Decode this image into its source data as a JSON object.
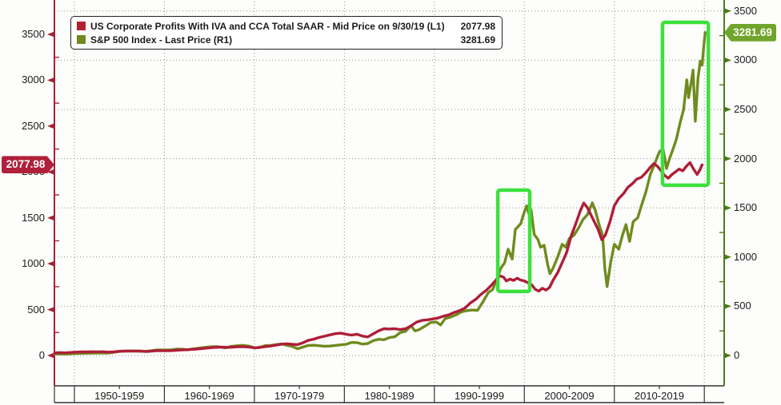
{
  "colors": {
    "profits_line": "#ae1e37",
    "sp500_line": "#6f8b1f",
    "left_axis": "#a82036",
    "right_axis": "#4a7c18",
    "highlight_box": "#3ce13c",
    "grid": "#8f8f8f",
    "band_line": "#333333",
    "left_tag_bg": "#b0203a",
    "right_tag_bg": "#70a42a"
  },
  "legend": {
    "items": [
      {
        "label": "US Corporate Profits With IVA and CCA Total SAAR - Mid Price on 9/30/19 (L1)",
        "value": "2077.98",
        "color": "#b3202f"
      },
      {
        "label": "S&P 500 Index - Last Price (R1)",
        "value": "3281.69",
        "color": "#6f8b1f"
      }
    ]
  },
  "price_tags": {
    "left": {
      "text": "2077.98",
      "value": 2077.98,
      "axis": "L1"
    },
    "right": {
      "text": "3281.69",
      "value": 3281.69,
      "axis": "R1"
    }
  },
  "chart_data": {
    "type": "line",
    "grid": true,
    "left_axis": {
      "name": "L1",
      "range": [
        0,
        3500
      ],
      "tick_step": 500,
      "minor_step": 250,
      "tick_values": [
        0,
        500,
        1000,
        1500,
        2000,
        2500,
        3000,
        3500
      ]
    },
    "right_axis": {
      "name": "R1",
      "range": [
        0,
        3500
      ],
      "tick_step": 500,
      "minor_step": 250,
      "tick_values": [
        0,
        500,
        1000,
        1500,
        2000,
        2500,
        3000,
        3500
      ]
    },
    "x_axis": {
      "boundaries": [
        1950,
        1960,
        1970,
        1980,
        1990,
        2000,
        2010,
        2020
      ],
      "labels": [
        "1950-1959",
        "1960-1969",
        "1970-1979",
        "1980-1989",
        "1990-1999",
        "2000-2009",
        "2010-2019"
      ]
    },
    "series": [
      {
        "name": "S&P 500 Index - Last Price (R1)",
        "axis": "R1",
        "color": "#6f8b1f",
        "last_value": 3281.69,
        "points": [
          [
            1947.8,
            15
          ],
          [
            1948.5,
            16
          ],
          [
            1949.2,
            15
          ],
          [
            1950,
            19
          ],
          [
            1950.7,
            21
          ],
          [
            1951.4,
            23
          ],
          [
            1952.1,
            24
          ],
          [
            1952.8,
            25
          ],
          [
            1953.5,
            24
          ],
          [
            1954.2,
            30
          ],
          [
            1955,
            41
          ],
          [
            1955.7,
            45
          ],
          [
            1956.4,
            47
          ],
          [
            1957.1,
            45
          ],
          [
            1957.8,
            41
          ],
          [
            1958.5,
            48
          ],
          [
            1959.2,
            56
          ],
          [
            1960,
            56
          ],
          [
            1960.7,
            56
          ],
          [
            1961.4,
            66
          ],
          [
            1962.1,
            63
          ],
          [
            1962.5,
            56
          ],
          [
            1963,
            65
          ],
          [
            1963.7,
            73
          ],
          [
            1964.4,
            81
          ],
          [
            1965.1,
            88
          ],
          [
            1965.8,
            91
          ],
          [
            1966.3,
            84
          ],
          [
            1966.8,
            77
          ],
          [
            1967.4,
            92
          ],
          [
            1968,
            98
          ],
          [
            1968.7,
            103
          ],
          [
            1969.4,
            95
          ],
          [
            1970,
            78
          ],
          [
            1970.6,
            83
          ],
          [
            1971.2,
            100
          ],
          [
            1971.8,
            102
          ],
          [
            1972.4,
            110
          ],
          [
            1973,
            118
          ],
          [
            1973.6,
            104
          ],
          [
            1974.2,
            92
          ],
          [
            1974.8,
            68
          ],
          [
            1975.4,
            86
          ],
          [
            1976,
            102
          ],
          [
            1976.6,
            104
          ],
          [
            1977.2,
            99
          ],
          [
            1977.8,
            94
          ],
          [
            1978.4,
            96
          ],
          [
            1979,
            102
          ],
          [
            1979.6,
            108
          ],
          [
            1980.2,
            114
          ],
          [
            1980.8,
            132
          ],
          [
            1981.4,
            131
          ],
          [
            1982,
            115
          ],
          [
            1982.6,
            122
          ],
          [
            1983.2,
            150
          ],
          [
            1983.8,
            165
          ],
          [
            1984.4,
            160
          ],
          [
            1985,
            182
          ],
          [
            1985.6,
            190
          ],
          [
            1986.2,
            232
          ],
          [
            1986.8,
            245
          ],
          [
            1987.4,
            302
          ],
          [
            1987.85,
            250
          ],
          [
            1988.3,
            262
          ],
          [
            1989,
            300
          ],
          [
            1989.6,
            335
          ],
          [
            1990.2,
            340
          ],
          [
            1990.7,
            310
          ],
          [
            1991.2,
            375
          ],
          [
            1991.8,
            390
          ],
          [
            1992.4,
            412
          ],
          [
            1993,
            442
          ],
          [
            1993.6,
            455
          ],
          [
            1994.2,
            462
          ],
          [
            1994.8,
            459
          ],
          [
            1995.4,
            545
          ],
          [
            1996,
            640
          ],
          [
            1996.5,
            672
          ],
          [
            1997,
            790
          ],
          [
            1997.4,
            890
          ],
          [
            1997.8,
            940
          ],
          [
            1998.2,
            1080
          ],
          [
            1998.65,
            980
          ],
          [
            1999,
            1280
          ],
          [
            1999.3,
            1310
          ],
          [
            1999.6,
            1340
          ],
          [
            2000,
            1460
          ],
          [
            2000.25,
            1520
          ],
          [
            2000.5,
            1440
          ],
          [
            2000.75,
            1480
          ],
          [
            2001.1,
            1230
          ],
          [
            2001.5,
            1180
          ],
          [
            2001.8,
            1100
          ],
          [
            2002.2,
            1120
          ],
          [
            2002.6,
            920
          ],
          [
            2002.85,
            830
          ],
          [
            2003.2,
            890
          ],
          [
            2003.7,
            1000
          ],
          [
            2004.2,
            1130
          ],
          [
            2004.6,
            1100
          ],
          [
            2005,
            1190
          ],
          [
            2005.5,
            1220
          ],
          [
            2006,
            1290
          ],
          [
            2006.5,
            1380
          ],
          [
            2007,
            1430
          ],
          [
            2007.55,
            1550
          ],
          [
            2007.9,
            1470
          ],
          [
            2008.3,
            1330
          ],
          [
            2008.7,
            1220
          ],
          [
            2008.95,
            880
          ],
          [
            2009.2,
            700
          ],
          [
            2009.6,
            950
          ],
          [
            2010,
            1130
          ],
          [
            2010.5,
            1080
          ],
          [
            2010.9,
            1220
          ],
          [
            2011.3,
            1330
          ],
          [
            2011.7,
            1160
          ],
          [
            2012.1,
            1360
          ],
          [
            2012.6,
            1400
          ],
          [
            2013,
            1520
          ],
          [
            2013.5,
            1660
          ],
          [
            2014,
            1840
          ],
          [
            2014.5,
            1950
          ],
          [
            2015,
            2070
          ],
          [
            2015.4,
            2100
          ],
          [
            2015.8,
            1900
          ],
          [
            2016.1,
            1990
          ],
          [
            2016.5,
            2090
          ],
          [
            2016.9,
            2200
          ],
          [
            2017.3,
            2360
          ],
          [
            2017.7,
            2500
          ],
          [
            2018.05,
            2800
          ],
          [
            2018.25,
            2620
          ],
          [
            2018.55,
            2780
          ],
          [
            2018.75,
            2900
          ],
          [
            2019.0,
            2380
          ],
          [
            2019.3,
            2820
          ],
          [
            2019.55,
            2990
          ],
          [
            2019.75,
            2950
          ],
          [
            2019.95,
            3150
          ],
          [
            2020.1,
            3281.69
          ]
        ]
      },
      {
        "name": "US Corporate Profits With IVA and CCA Total SAAR - Mid Price on 9/30/19 (L1)",
        "axis": "L1",
        "color": "#ae1e37",
        "last_value": 2077.98,
        "points": [
          [
            1947.8,
            26
          ],
          [
            1948.3,
            31
          ],
          [
            1949,
            29
          ],
          [
            1949.6,
            33
          ],
          [
            1950.2,
            37
          ],
          [
            1950.8,
            40
          ],
          [
            1951.4,
            39
          ],
          [
            1952,
            41
          ],
          [
            1952.6,
            39
          ],
          [
            1953.2,
            41
          ],
          [
            1953.8,
            37
          ],
          [
            1954.4,
            39
          ],
          [
            1955,
            46
          ],
          [
            1955.6,
            48
          ],
          [
            1956.2,
            47
          ],
          [
            1956.8,
            49
          ],
          [
            1957.4,
            48
          ],
          [
            1958,
            43
          ],
          [
            1958.6,
            48
          ],
          [
            1959.2,
            53
          ],
          [
            1959.8,
            51
          ],
          [
            1960.4,
            52
          ],
          [
            1961,
            54
          ],
          [
            1961.6,
            58
          ],
          [
            1962.2,
            62
          ],
          [
            1962.8,
            64
          ],
          [
            1963.4,
            68
          ],
          [
            1964,
            74
          ],
          [
            1964.6,
            79
          ],
          [
            1965.2,
            85
          ],
          [
            1965.8,
            89
          ],
          [
            1966.4,
            91
          ],
          [
            1967,
            88
          ],
          [
            1967.6,
            91
          ],
          [
            1968.2,
            97
          ],
          [
            1968.8,
            95
          ],
          [
            1969.4,
            92
          ],
          [
            1970,
            83
          ],
          [
            1970.6,
            87
          ],
          [
            1971.2,
            97
          ],
          [
            1971.8,
            103
          ],
          [
            1972.4,
            112
          ],
          [
            1973,
            123
          ],
          [
            1973.6,
            128
          ],
          [
            1974.2,
            122
          ],
          [
            1974.8,
            118
          ],
          [
            1975.4,
            138
          ],
          [
            1976,
            165
          ],
          [
            1976.6,
            178
          ],
          [
            1977.2,
            197
          ],
          [
            1977.8,
            210
          ],
          [
            1978.4,
            225
          ],
          [
            1979,
            238
          ],
          [
            1979.6,
            243
          ],
          [
            1980.2,
            232
          ],
          [
            1980.8,
            222
          ],
          [
            1981.4,
            232
          ],
          [
            1982,
            212
          ],
          [
            1982.6,
            202
          ],
          [
            1983.2,
            235
          ],
          [
            1983.8,
            268
          ],
          [
            1984.4,
            292
          ],
          [
            1985,
            288
          ],
          [
            1985.6,
            292
          ],
          [
            1986.2,
            282
          ],
          [
            1986.8,
            292
          ],
          [
            1987.4,
            322
          ],
          [
            1988,
            362
          ],
          [
            1988.6,
            382
          ],
          [
            1989.2,
            388
          ],
          [
            1989.8,
            398
          ],
          [
            1990.4,
            408
          ],
          [
            1991,
            428
          ],
          [
            1991.6,
            442
          ],
          [
            1992.2,
            468
          ],
          [
            1992.8,
            488
          ],
          [
            1993.4,
            516
          ],
          [
            1994,
            572
          ],
          [
            1994.6,
            612
          ],
          [
            1995.2,
            668
          ],
          [
            1995.8,
            712
          ],
          [
            1996.4,
            772
          ],
          [
            1997,
            838
          ],
          [
            1997.3,
            868
          ],
          [
            1997.7,
            852
          ],
          [
            1998,
            812
          ],
          [
            1998.4,
            832
          ],
          [
            1998.8,
            818
          ],
          [
            1999.2,
            842
          ],
          [
            1999.6,
            822
          ],
          [
            2000,
            812
          ],
          [
            2000.4,
            792
          ],
          [
            2000.8,
            772
          ],
          [
            2001.2,
            722
          ],
          [
            2001.6,
            702
          ],
          [
            2002,
            732
          ],
          [
            2002.4,
            712
          ],
          [
            2002.8,
            742
          ],
          [
            2003.2,
            822
          ],
          [
            2003.7,
            902
          ],
          [
            2004.2,
            1012
          ],
          [
            2004.7,
            1122
          ],
          [
            2005.2,
            1302
          ],
          [
            2005.7,
            1432
          ],
          [
            2006.2,
            1572
          ],
          [
            2006.6,
            1662
          ],
          [
            2007,
            1612
          ],
          [
            2007.4,
            1532
          ],
          [
            2007.8,
            1452
          ],
          [
            2008.2,
            1372
          ],
          [
            2008.6,
            1262
          ],
          [
            2009,
            1312
          ],
          [
            2009.5,
            1452
          ],
          [
            2010,
            1632
          ],
          [
            2010.5,
            1712
          ],
          [
            2011,
            1762
          ],
          [
            2011.5,
            1832
          ],
          [
            2012,
            1872
          ],
          [
            2012.5,
            1922
          ],
          [
            2013,
            1942
          ],
          [
            2013.5,
            1992
          ],
          [
            2014,
            2052
          ],
          [
            2014.4,
            2092
          ],
          [
            2014.8,
            2062
          ],
          [
            2015.2,
            2012
          ],
          [
            2015.6,
            1962
          ],
          [
            2016,
            1932
          ],
          [
            2016.4,
            1972
          ],
          [
            2016.8,
            2002
          ],
          [
            2017.2,
            2032
          ],
          [
            2017.6,
            2012
          ],
          [
            2018,
            2062
          ],
          [
            2018.4,
            2102
          ],
          [
            2018.8,
            2032
          ],
          [
            2019.2,
            1972
          ],
          [
            2019.5,
            2022
          ],
          [
            2019.75,
            2077.98
          ]
        ]
      }
    ],
    "highlight_boxes": [
      {
        "axis": "R1",
        "year_start": 1997.05,
        "year_end": 2000.6,
        "value_bottom": 650,
        "value_top": 1680
      },
      {
        "axis": "R1",
        "year_start": 2015.35,
        "year_end": 2020.45,
        "value_bottom": 1730,
        "value_top": 3385
      }
    ]
  }
}
